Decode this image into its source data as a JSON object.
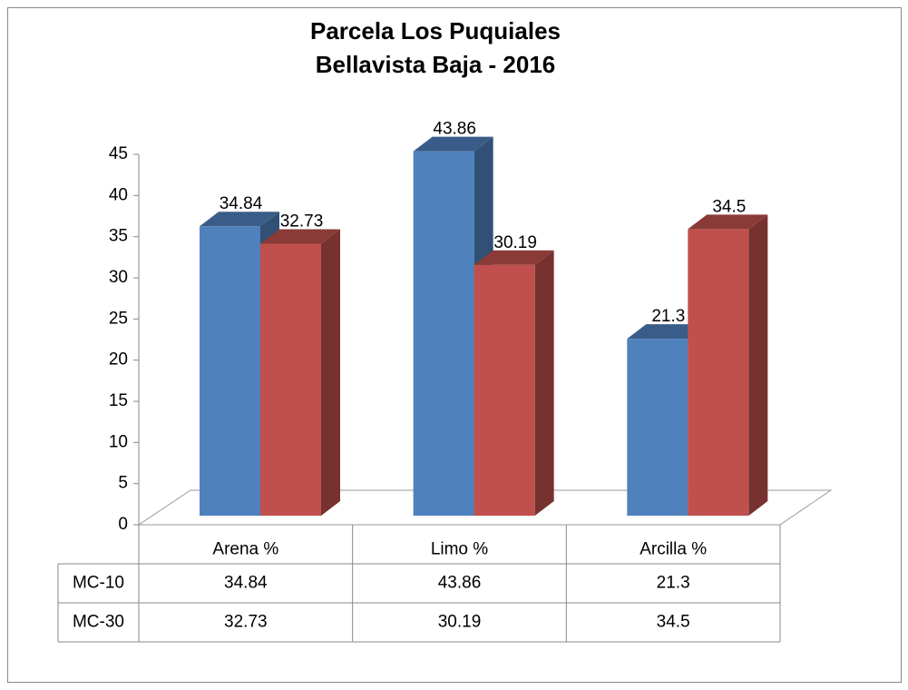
{
  "chart_data": {
    "type": "bar3d",
    "title": "Parcela Los Puquiales",
    "subtitle": "Bellavista Baja - 2016",
    "categories": [
      "Arena %",
      "Limo %",
      "Arcilla %"
    ],
    "series": [
      {
        "name": "MC-10",
        "color": "#4f81bd",
        "values": [
          34.84,
          43.86,
          21.3
        ]
      },
      {
        "name": "MC-30",
        "color": "#c0504d",
        "values": [
          32.73,
          30.19,
          34.5
        ]
      }
    ],
    "ylim": [
      0,
      45
    ],
    "yticks": [
      0,
      5,
      10,
      15,
      20,
      25,
      30,
      35,
      40,
      45
    ],
    "data_table": true
  }
}
